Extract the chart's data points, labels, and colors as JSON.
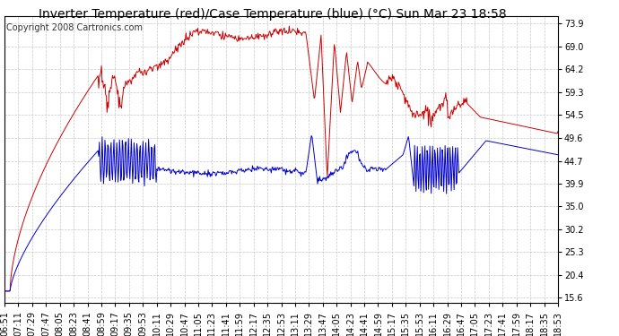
{
  "title": "Inverter Temperature (red)/Case Temperature (blue) (°C) Sun Mar 23 18:58",
  "copyright": "Copyright 2008 Cartronics.com",
  "yticks": [
    15.6,
    20.4,
    25.3,
    30.2,
    35.0,
    39.9,
    44.7,
    49.6,
    54.5,
    59.3,
    64.2,
    69.0,
    73.9
  ],
  "ylim": [
    14.5,
    75.5
  ],
  "background_color": "#ffffff",
  "plot_bg_color": "#ffffff",
  "grid_color": "#c8c8c8",
  "red_color": "#cc0000",
  "blue_color": "#0000cc",
  "title_fontsize": 10,
  "copyright_fontsize": 7,
  "tick_fontsize": 7,
  "x_tick_labels": [
    "06:51",
    "07:11",
    "07:29",
    "07:47",
    "08:05",
    "08:23",
    "08:41",
    "08:59",
    "09:17",
    "09:35",
    "09:53",
    "10:11",
    "10:29",
    "10:47",
    "11:05",
    "11:23",
    "11:41",
    "11:59",
    "12:17",
    "12:35",
    "12:53",
    "13:11",
    "13:29",
    "13:47",
    "14:05",
    "14:23",
    "14:41",
    "14:59",
    "15:17",
    "15:35",
    "15:53",
    "16:11",
    "16:29",
    "16:47",
    "17:05",
    "17:23",
    "17:41",
    "17:59",
    "18:17",
    "18:35",
    "18:53"
  ]
}
